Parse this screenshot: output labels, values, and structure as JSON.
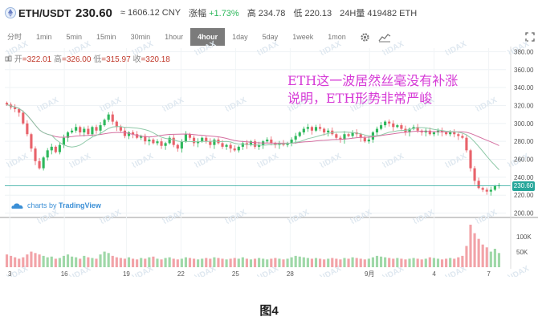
{
  "header": {
    "pair": "ETH/USDT",
    "price": "230.60",
    "cny": "≈ 1606.12 CNY",
    "change_label": "涨幅",
    "change_value": "+1.73%",
    "high_label": "高",
    "high_value": "234.78",
    "low_label": "低",
    "low_value": "220.13",
    "volume_label": "24H量",
    "volume_value": "419482 ETH"
  },
  "timeframes": [
    "分时",
    "1min",
    "5min",
    "15min",
    "30min",
    "1hour",
    "4hour",
    "1day",
    "5day",
    "1week",
    "1mon"
  ],
  "active_timeframe": "4hour",
  "icons": {
    "settings": "gear-icon",
    "indicators": "indicator-icon",
    "fullscreen": "fullscreen-icon"
  },
  "ohlc": {
    "open_label": "开",
    "open": "322.01",
    "high_label": "高",
    "high": "326.00",
    "low_label": "低",
    "low": "315.97",
    "close_label": "收",
    "close": "320.18"
  },
  "annotation": {
    "line1": "ETH这一波居然丝毫没有补涨",
    "line2": "说明，ETH形势非常严峻"
  },
  "attribution": {
    "prefix": "charts by",
    "brand": "TradingView"
  },
  "caption": "图4",
  "colors": {
    "up": "#2eb85c",
    "down": "#e8636b",
    "ma_fast": "#d46fa0",
    "ma_slow": "#8fc9a8",
    "accent": "#26a69a",
    "note": "#d63ad6"
  },
  "chart_data": {
    "type": "candlestick",
    "last_price": "230.60",
    "y_axis_ticks": [
      "380.00",
      "360.00",
      "340.00",
      "320.00",
      "300.00",
      "280.00",
      "260.00",
      "240.00",
      "220.00",
      "200.00"
    ],
    "ylim": [
      196,
      384
    ],
    "volume_ticks": [
      "100K",
      "50K"
    ],
    "x_tick_labels": [
      "3",
      "16",
      "19",
      "22",
      "25",
      "28",
      "9月",
      "4",
      "7"
    ],
    "close": [
      321,
      318,
      316,
      312,
      300,
      288,
      272,
      258,
      250,
      262,
      270,
      274,
      268,
      276,
      284,
      290,
      292,
      296,
      290,
      294,
      288,
      296,
      292,
      298,
      304,
      310,
      302,
      296,
      292,
      286,
      290,
      288,
      284,
      286,
      280,
      282,
      278,
      280,
      275,
      278,
      284,
      276,
      272,
      280,
      288,
      284,
      278,
      280,
      284,
      280,
      276,
      282,
      278,
      274,
      276,
      272,
      270,
      274,
      278,
      276,
      280,
      274,
      276,
      280,
      282,
      278,
      276,
      278,
      276,
      278,
      282,
      286,
      290,
      294,
      296,
      292,
      296,
      294,
      290,
      292,
      288,
      284,
      282,
      288,
      286,
      290,
      288,
      284,
      280,
      282,
      290,
      294,
      298,
      302,
      300,
      296,
      298,
      294,
      290,
      294,
      296,
      292,
      290,
      292,
      288,
      290,
      292,
      290,
      288,
      290,
      288,
      286,
      284,
      270,
      250,
      236,
      228,
      226,
      224,
      226,
      230,
      231
    ],
    "volume": [
      18,
      16,
      14,
      12,
      14,
      18,
      22,
      20,
      18,
      16,
      14,
      15,
      12,
      13,
      16,
      18,
      15,
      14,
      12,
      16,
      14,
      13,
      12,
      18,
      22,
      20,
      16,
      14,
      13,
      12,
      14,
      12,
      11,
      13,
      12,
      14,
      15,
      12,
      11,
      13,
      14,
      12,
      11,
      12,
      14,
      13,
      12,
      11,
      12,
      13,
      12,
      14,
      13,
      12,
      11,
      12,
      13,
      12,
      14,
      12,
      11,
      12,
      13,
      12,
      11,
      12,
      13,
      12,
      11,
      12,
      14,
      16,
      15,
      14,
      13,
      12,
      13,
      12,
      11,
      12,
      13,
      12,
      11,
      13,
      12,
      14,
      13,
      12,
      11,
      12,
      14,
      16,
      15,
      14,
      13,
      12,
      13,
      12,
      11,
      12,
      13,
      12,
      11,
      12,
      14,
      13,
      12,
      11,
      12,
      13,
      12,
      14,
      16,
      30,
      60,
      48,
      40,
      32,
      28,
      22,
      26,
      20
    ]
  }
}
